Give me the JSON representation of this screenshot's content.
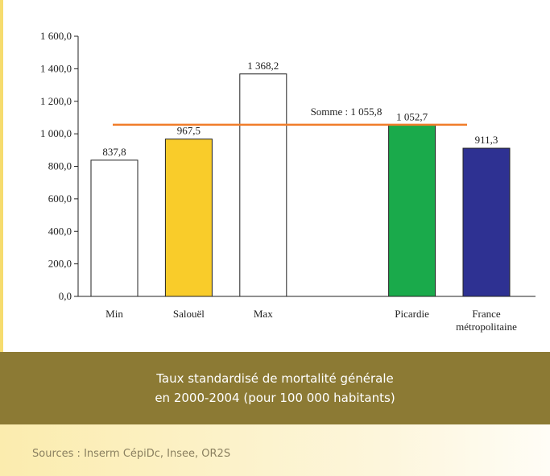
{
  "chart_data": {
    "type": "bar",
    "categories": [
      "Min",
      "Salouël",
      "Max",
      null,
      "Picardie",
      "France métropolitaine"
    ],
    "values": [
      837.8,
      967.5,
      1368.2,
      null,
      1052.7,
      911.3
    ],
    "value_labels": [
      "837,8",
      "967,5",
      "1 368,2",
      null,
      "1 052,7",
      "911,3"
    ],
    "colors": [
      "#ffffff",
      "#f9cc2a",
      "#ffffff",
      null,
      "#1aaa4b",
      "#2e3192"
    ],
    "ylim": [
      0,
      1600
    ],
    "yticks": [
      {
        "value": 0,
        "label": "0,0"
      },
      {
        "value": 200,
        "label": "200,0"
      },
      {
        "value": 400,
        "label": "400,0"
      },
      {
        "value": 600,
        "label": "600,0"
      },
      {
        "value": 800,
        "label": "800,0"
      },
      {
        "value": 1000,
        "label": "1 000,0"
      },
      {
        "value": 1200,
        "label": "1 200,0"
      },
      {
        "value": 1400,
        "label": "1 400,0"
      },
      {
        "value": 1600,
        "label": "1 600,0"
      }
    ],
    "reference_line": {
      "value": 1055.8,
      "label": "Somme : 1 055,8",
      "color": "#f07d2a"
    },
    "caption": [
      "Taux standardisé de mortalité générale",
      "en 2000-2004 (pour 100 000 habitants)"
    ],
    "source": "Sources : Inserm CépiDc, Insee, OR2S"
  }
}
